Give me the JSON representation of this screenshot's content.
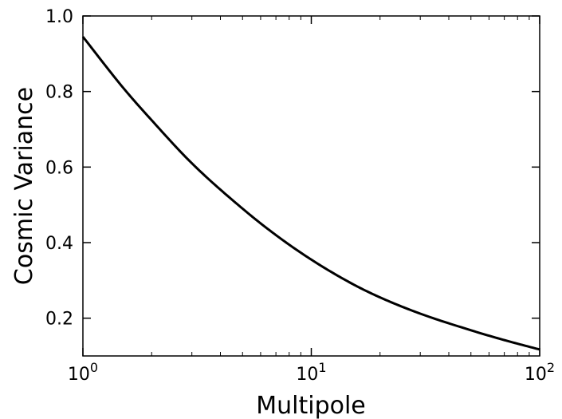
{
  "chart_data": {
    "type": "line",
    "title": "",
    "xlabel": "Multipole",
    "ylabel": "Cosmic Variance",
    "xscale": "log",
    "xlim": [
      1,
      100
    ],
    "ylim": [
      0.1,
      1.0
    ],
    "grid": false,
    "x_ticks": [
      {
        "value": 1,
        "base": "10",
        "exp": "0"
      },
      {
        "value": 10,
        "base": "10",
        "exp": "1"
      },
      {
        "value": 100,
        "base": "10",
        "exp": "2"
      }
    ],
    "y_ticks": [
      {
        "value": 0.2,
        "label": "0.2"
      },
      {
        "value": 0.4,
        "label": "0.4"
      },
      {
        "value": 0.6,
        "label": "0.6"
      },
      {
        "value": 0.8,
        "label": "0.8"
      },
      {
        "value": 1.0,
        "label": "1.0"
      }
    ],
    "series": [
      {
        "color": "#000000",
        "x": [
          1,
          1.5,
          2,
          3,
          5,
          7,
          10,
          15,
          20,
          30,
          50,
          70,
          100
        ],
        "y": [
          0.945,
          0.81,
          0.724,
          0.61,
          0.49,
          0.42,
          0.355,
          0.292,
          0.255,
          0.212,
          0.168,
          0.142,
          0.117
        ]
      }
    ]
  }
}
